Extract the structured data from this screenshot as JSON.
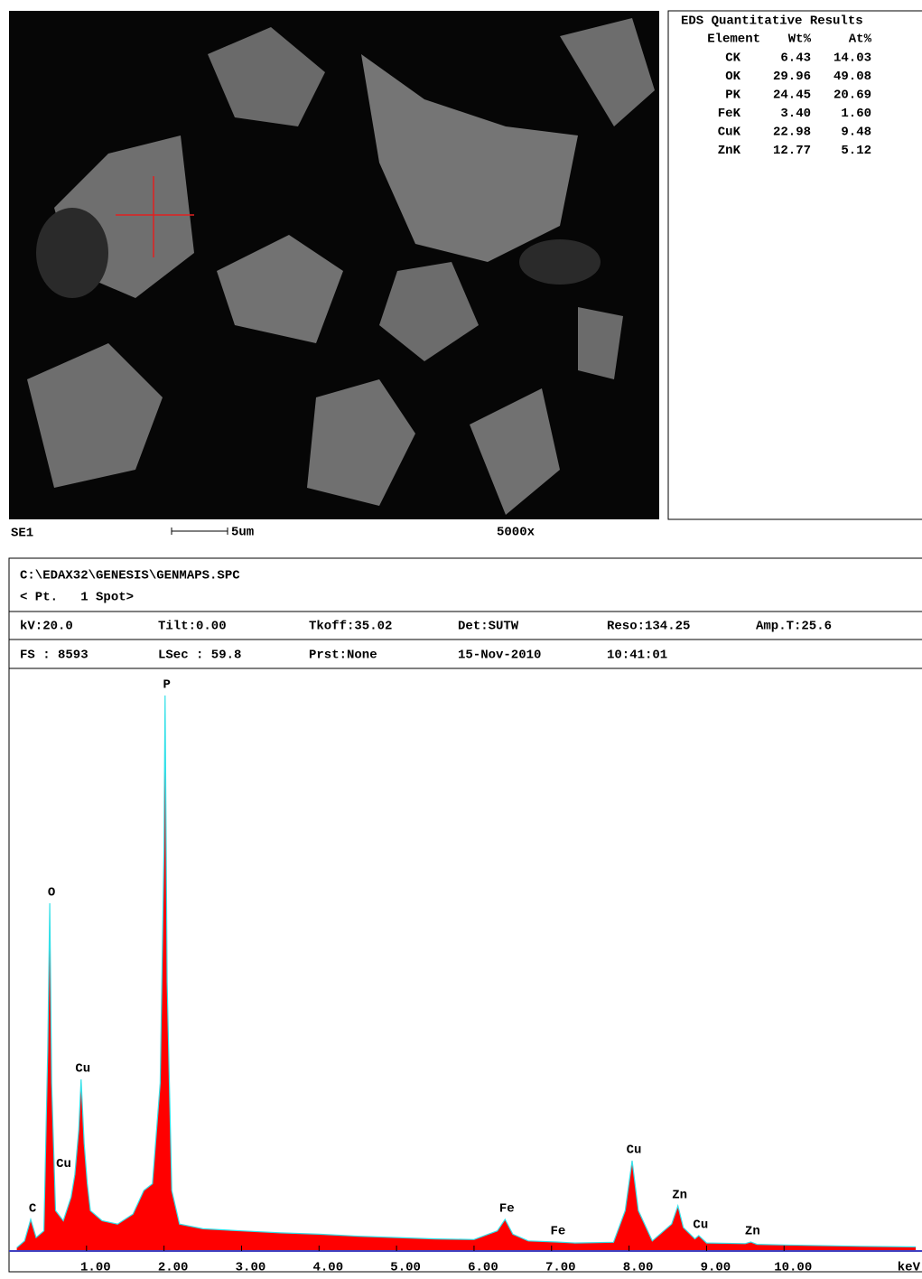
{
  "image": {
    "label": "SE1",
    "scale": "5um",
    "magnification": "5000x"
  },
  "results": {
    "title": "EDS Quantitative Results",
    "columns": [
      "Element",
      "Wt%",
      "At%"
    ],
    "rows": [
      [
        "CK",
        "6.43",
        "14.03"
      ],
      [
        "OK",
        "29.96",
        "49.08"
      ],
      [
        "PK",
        "24.45",
        "20.69"
      ],
      [
        "FeK",
        "3.40",
        "1.60"
      ],
      [
        "CuK",
        "22.98",
        "9.48"
      ],
      [
        "ZnK",
        "12.77",
        "5.12"
      ]
    ]
  },
  "header": {
    "file": "C:\\EDAX32\\GENESIS\\GENMAPS.SPC",
    "point": "< Pt.   1 Spot>",
    "row1": [
      "kV:20.0",
      "Tilt:0.00",
      "Tkoff:35.02",
      "Det:SUTW",
      "Reso:134.25",
      "Amp.T:25.6"
    ],
    "row2": [
      "FS : 8593",
      "LSec : 59.8",
      "Prst:None",
      "15-Nov-2010",
      "10:41:01"
    ]
  },
  "chart_data": {
    "type": "area",
    "x_label": "keV",
    "color": "#ff0000",
    "outline_color": "#33e0e8",
    "xlim": [
      0,
      11.78
    ],
    "ylim": [
      0,
      8600
    ],
    "xticks": [
      {
        "value": 1,
        "label": "1.00"
      },
      {
        "value": 2,
        "label": "2.00"
      },
      {
        "value": 3,
        "label": "3.00"
      },
      {
        "value": 4,
        "label": "4.00"
      },
      {
        "value": 5,
        "label": "5.00"
      },
      {
        "value": 6,
        "label": "6.00"
      },
      {
        "value": 7,
        "label": "7.00"
      },
      {
        "value": 8,
        "label": "8.00"
      },
      {
        "value": 9,
        "label": "9.00"
      },
      {
        "value": 10,
        "label": "10.00"
      }
    ],
    "x": [
      0.1,
      0.2,
      0.28,
      0.35,
      0.45,
      0.5,
      0.525,
      0.55,
      0.6,
      0.7,
      0.8,
      0.85,
      0.9,
      0.93,
      0.97,
      1.01,
      1.05,
      1.2,
      1.4,
      1.6,
      1.74,
      1.85,
      1.95,
      2.0,
      2.013,
      2.04,
      2.1,
      2.2,
      2.5,
      3.0,
      3.5,
      4.0,
      4.5,
      5.0,
      5.5,
      6.0,
      6.3,
      6.4,
      6.5,
      6.7,
      7.06,
      7.3,
      7.8,
      7.95,
      8.04,
      8.12,
      8.3,
      8.55,
      8.63,
      8.7,
      8.85,
      8.9,
      9.0,
      9.5,
      9.57,
      9.65,
      10.0,
      11.0,
      11.7
    ],
    "values": [
      50,
      150,
      470,
      200,
      300,
      3000,
      5173,
      2500,
      600,
      450,
      800,
      1140,
      1800,
      2553,
      1600,
      1000,
      600,
      450,
      400,
      550,
      900,
      1000,
      2500,
      6000,
      8264,
      4000,
      900,
      400,
      330,
      300,
      270,
      250,
      220,
      200,
      180,
      170,
      300,
      470,
      250,
      150,
      135,
      120,
      130,
      600,
      1344,
      600,
      150,
      400,
      672,
      350,
      180,
      230,
      120,
      110,
      135,
      100,
      90,
      70,
      60
    ],
    "peaks": [
      {
        "label": "C",
        "x": 0.28
      },
      {
        "label": "O",
        "x": 0.525
      },
      {
        "label": "Cu",
        "x": 0.93
      },
      {
        "label": "Cu",
        "x": 0.85
      },
      {
        "label": "P",
        "x": 2.013
      },
      {
        "label": "Fe",
        "x": 6.4
      },
      {
        "label": "Fe",
        "x": 7.06
      },
      {
        "label": "Cu",
        "x": 8.04
      },
      {
        "label": "Zn",
        "x": 8.63
      },
      {
        "label": "Cu",
        "x": 8.9
      },
      {
        "label": "Zn",
        "x": 9.57
      }
    ]
  }
}
